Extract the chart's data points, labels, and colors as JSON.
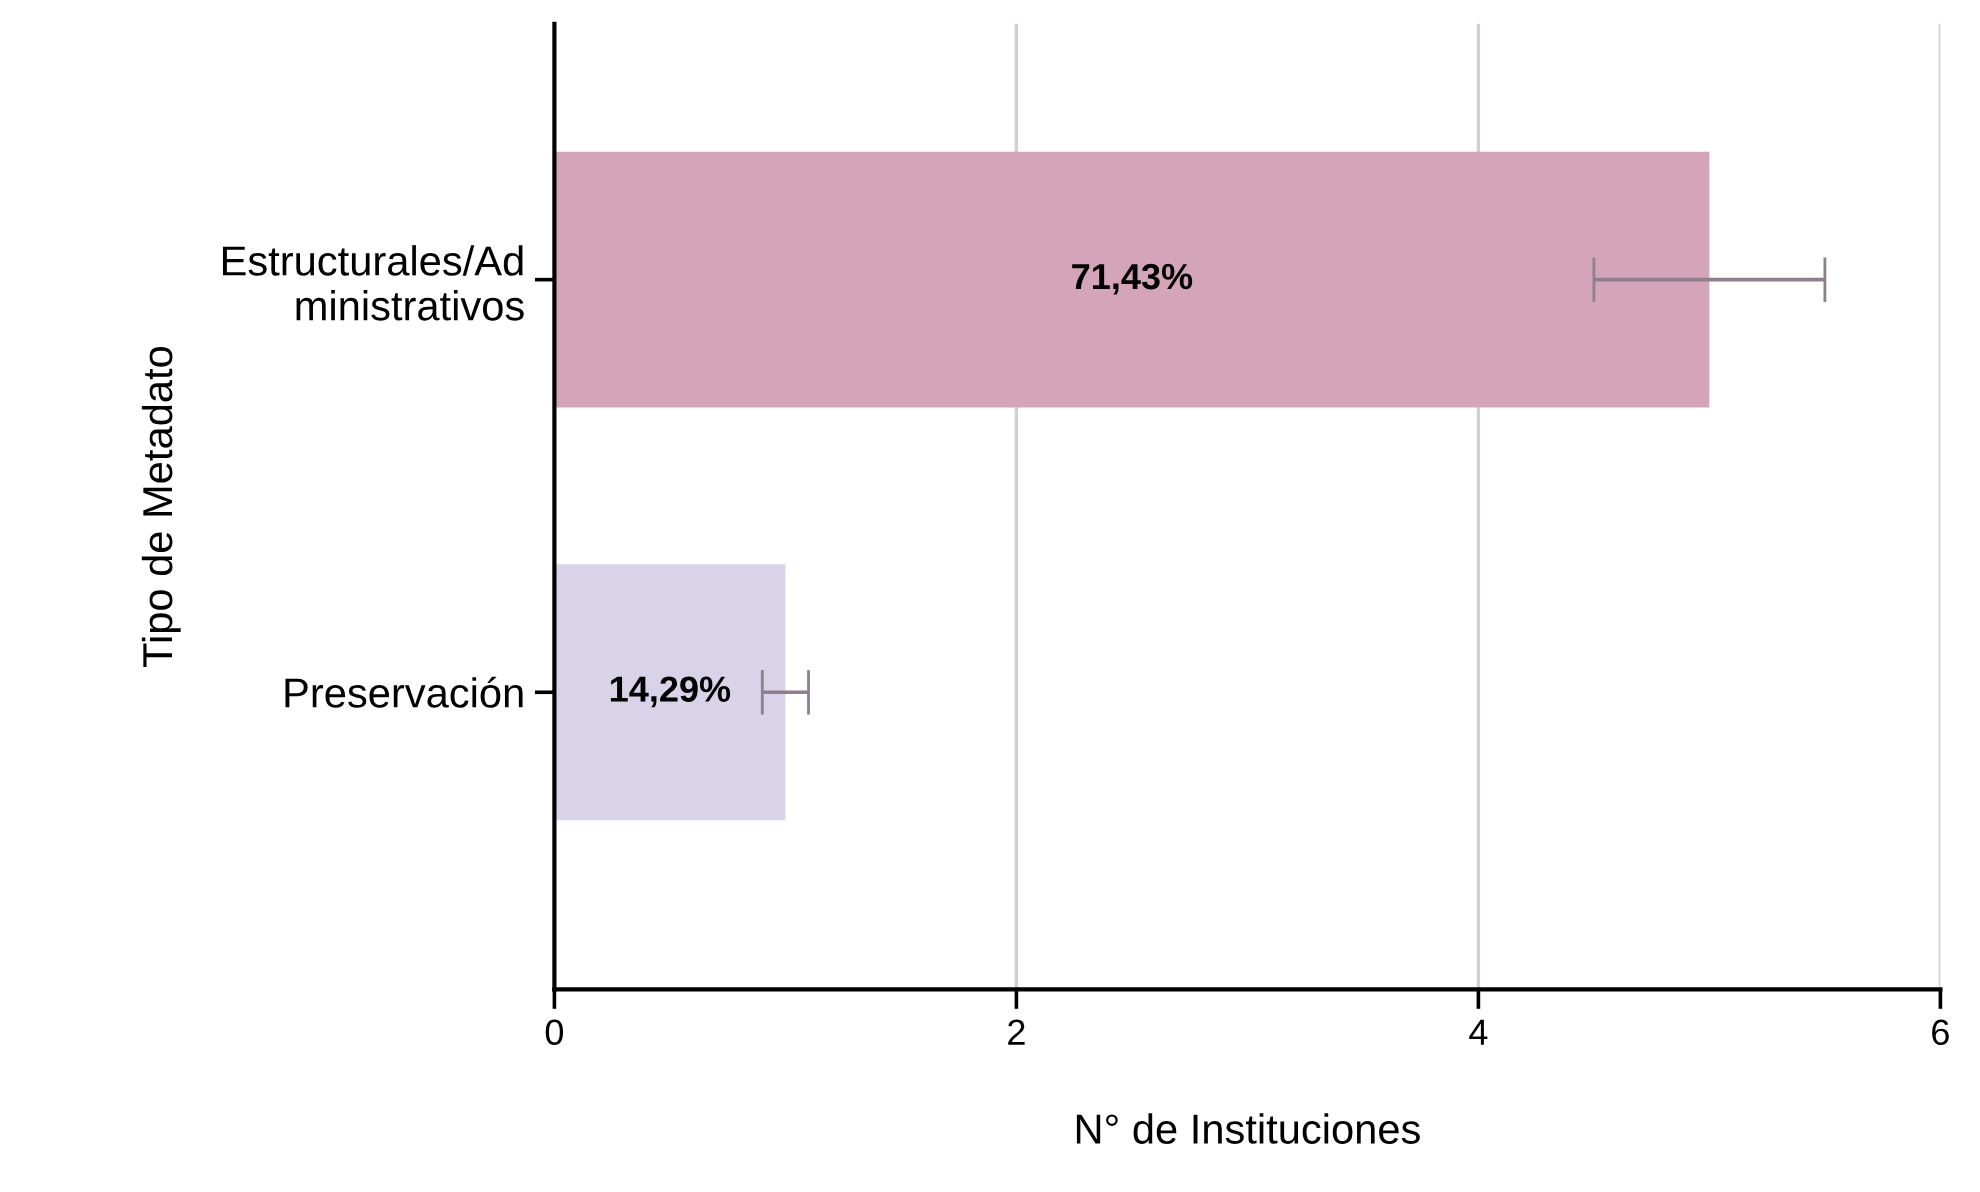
{
  "chart_data": {
    "type": "bar",
    "orientation": "horizontal",
    "xlabel": "N° de Instituciones",
    "ylabel": "Tipo de Metadato",
    "categories": [
      "Estructurales/Administrativos",
      "Preservación"
    ],
    "values": [
      5,
      1
    ],
    "colors": [
      "#d4a5b8",
      "#d8d3e8"
    ],
    "errors": [
      0.5,
      0.1
    ],
    "annotations": [
      "71,43%",
      "14,29%"
    ],
    "xlim": [
      0,
      6
    ],
    "xticks": [
      0,
      2,
      4,
      6
    ],
    "grid": "x"
  }
}
